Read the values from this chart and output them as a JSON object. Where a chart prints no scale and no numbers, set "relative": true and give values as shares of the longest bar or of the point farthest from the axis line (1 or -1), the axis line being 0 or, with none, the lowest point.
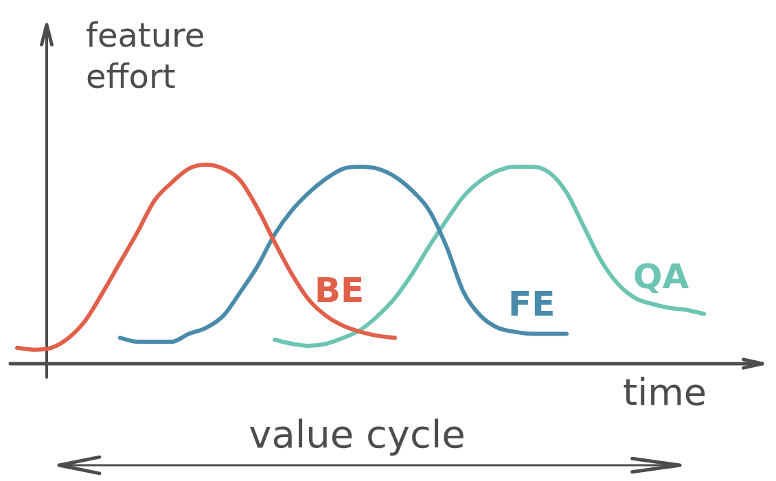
{
  "chart_data": {
    "type": "line",
    "relative": true,
    "ylabel": "feature effort",
    "xlabel": "time",
    "annotations": [
      "value cycle"
    ],
    "categories": [
      null,
      null,
      null,
      null,
      null,
      null,
      null,
      null,
      null,
      null,
      null,
      null,
      null,
      null,
      null,
      null,
      null,
      null,
      null,
      null,
      null,
      null,
      null,
      null,
      null,
      null,
      null,
      null,
      null,
      null,
      null,
      null,
      null,
      null,
      null,
      null,
      null,
      null,
      null,
      null,
      null
    ],
    "series": [
      {
        "name": "BE",
        "color": "#e0604a",
        "values": [
          0.08,
          0.07,
          0.08,
          0.13,
          0.22,
          0.36,
          0.51,
          0.66,
          0.82,
          0.91,
          0.98,
          1,
          0.98,
          0.92,
          0.78,
          0.61,
          0.45,
          0.32,
          0.24,
          0.19,
          0.16,
          0.14,
          0.13,
          null,
          null,
          null,
          null,
          null,
          null,
          null,
          null,
          null,
          null,
          null,
          null,
          null,
          null,
          null,
          null,
          null,
          null
        ]
      },
      {
        "name": "FE",
        "color": "#4a8bab",
        "values": [
          null,
          null,
          null,
          null,
          null,
          null,
          0.13,
          0.11,
          0.11,
          0.11,
          0.15,
          0.18,
          0.24,
          0.36,
          0.49,
          0.65,
          0.77,
          0.86,
          0.93,
          0.98,
          0.99,
          0.98,
          0.94,
          0.87,
          0.77,
          0.59,
          0.36,
          0.24,
          0.18,
          0.16,
          0.15,
          0.15,
          0.15,
          null,
          null,
          null,
          null,
          null,
          null,
          null,
          null
        ]
      },
      {
        "name": "QA",
        "color": "#6cc4b2",
        "values": [
          null,
          null,
          null,
          null,
          null,
          null,
          null,
          null,
          null,
          null,
          null,
          null,
          null,
          null,
          null,
          0.12,
          0.1,
          0.09,
          0.1,
          0.13,
          0.17,
          0.24,
          0.33,
          0.45,
          0.59,
          0.72,
          0.84,
          0.92,
          0.97,
          0.99,
          0.99,
          0.96,
          0.86,
          0.69,
          0.52,
          0.4,
          0.33,
          0.3,
          0.28,
          0.27,
          0.25
        ]
      }
    ]
  }
}
